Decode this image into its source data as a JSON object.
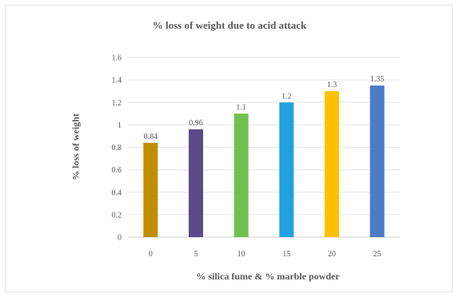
{
  "chart_data": {
    "type": "bar",
    "title": "% loss of weight due to acid attack",
    "xlabel": "% silica fume & % marble powder",
    "ylabel": "% loss of weight",
    "categories": [
      "0",
      "5",
      "10",
      "15",
      "20",
      "25"
    ],
    "values": [
      0.84,
      0.96,
      1.1,
      1.2,
      1.3,
      1.35
    ],
    "data_labels": [
      "0.84",
      "0.96",
      "1.1",
      "1.2",
      "1.3",
      "1.35"
    ],
    "bar_colors": [
      "#bf8f00",
      "#5b4a8a",
      "#70c050",
      "#1fa3e0",
      "#ffc000",
      "#4a7bc4"
    ],
    "ylim": [
      0,
      1.6
    ],
    "yticks": [
      "0",
      "0.2",
      "0.4",
      "0.6",
      "0.8",
      "1",
      "1.2",
      "1.4",
      "1.6"
    ],
    "grid": true,
    "legend": "none"
  }
}
